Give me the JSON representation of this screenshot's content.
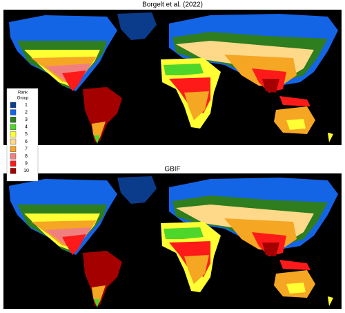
{
  "panels": [
    {
      "title": "Borgelt et al. (2022)"
    },
    {
      "title": "GBIF"
    }
  ],
  "legend": {
    "title": [
      "Rank",
      "Group"
    ],
    "items": [
      {
        "label": 1,
        "color": "#0b3c8c"
      },
      {
        "label": 2,
        "color": "#1464e6"
      },
      {
        "label": 3,
        "color": "#2e7d1e"
      },
      {
        "label": 4,
        "color": "#4fd62a"
      },
      {
        "label": 5,
        "color": "#ffff33"
      },
      {
        "label": 6,
        "color": "#ffd98a"
      },
      {
        "label": 7,
        "color": "#f5a623"
      },
      {
        "label": 8,
        "color": "#f08080"
      },
      {
        "label": 9,
        "color": "#ff1a1a"
      },
      {
        "label": 10,
        "color": "#a50000"
      }
    ]
  }
}
